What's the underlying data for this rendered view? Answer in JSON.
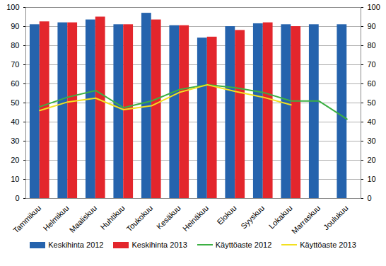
{
  "chart_data": {
    "type": "bar",
    "categories": [
      "Tammikuu",
      "Helmikuu",
      "Maaliskuu",
      "Huhtikuu",
      "Toukokuu",
      "Kesäkuu",
      "Heinäkuu",
      "Elokuu",
      "Syyskuu",
      "Lokakuu",
      "Marraskuu",
      "Joulukuu"
    ],
    "series": [
      {
        "name": "Keskihinta 2012",
        "color": "#2563ad",
        "type": "bar",
        "values": [
          91,
          92,
          93.5,
          91,
          97,
          90.5,
          84,
          90,
          91.5,
          91,
          91,
          91
        ]
      },
      {
        "name": "Keskihinta 2013",
        "color": "#e3262c",
        "type": "bar",
        "values": [
          92.5,
          92,
          95,
          91,
          93.5,
          90.5,
          84.5,
          88,
          92,
          90,
          null,
          null
        ]
      },
      {
        "name": "Käyttöaste 2012",
        "color": "#3cb043",
        "type": "line",
        "axis": "y2",
        "values": [
          48,
          53,
          56.5,
          47.5,
          51,
          57,
          59.5,
          58,
          55.5,
          51,
          51,
          41.5
        ]
      },
      {
        "name": "Käyttöaste 2013",
        "color": "#f2e020",
        "type": "line",
        "axis": "y2",
        "values": [
          46,
          50.5,
          52.5,
          46.5,
          48.5,
          55.5,
          59.5,
          56,
          53,
          49,
          null,
          null
        ]
      }
    ],
    "ylim": [
      0,
      100
    ],
    "yticks": [
      0,
      10,
      20,
      30,
      40,
      50,
      60,
      70,
      80,
      90,
      100
    ],
    "y2lim": [
      0,
      100
    ],
    "y2ticks": [
      0,
      10,
      20,
      30,
      40,
      50,
      60,
      70,
      80,
      90,
      100
    ],
    "grid": true,
    "legend": "bottom"
  }
}
